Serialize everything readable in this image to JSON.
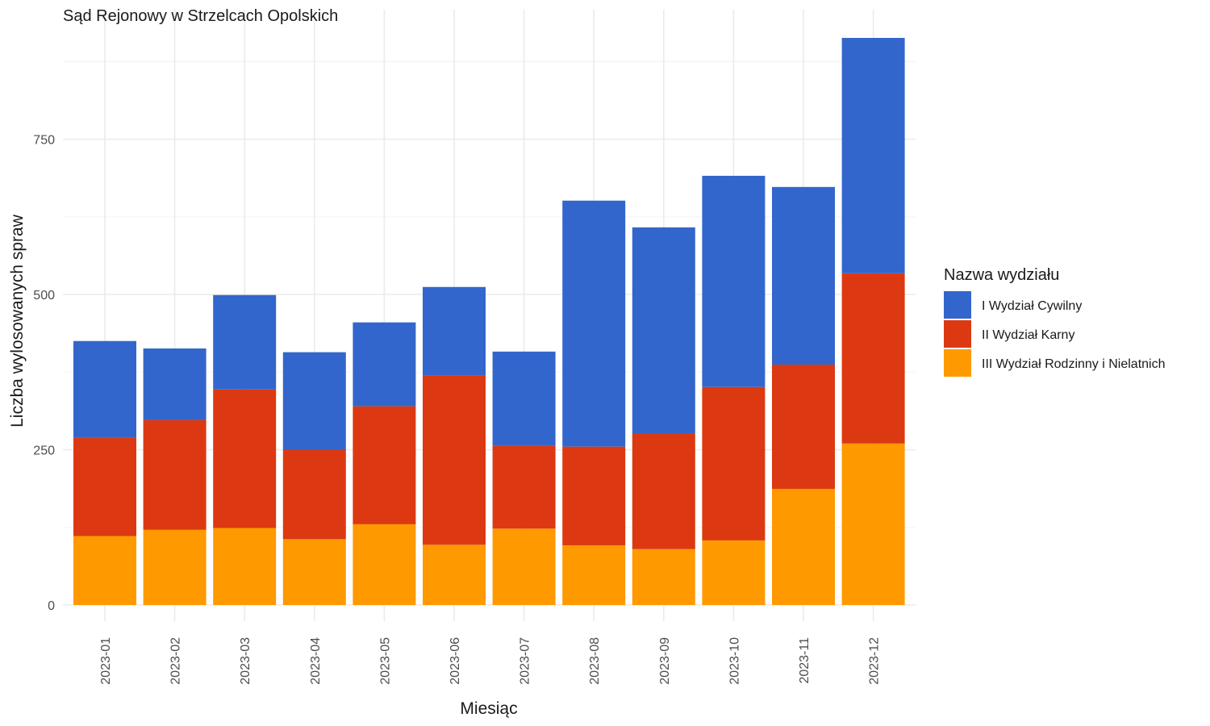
{
  "chart_data": {
    "type": "bar",
    "stacked": true,
    "title": "Sąd Rejonowy w Strzelcach Opolskich",
    "xlabel": "Miesiąc",
    "ylabel": "Liczba wylosowanych spraw",
    "categories": [
      "2023-01",
      "2023-02",
      "2023-03",
      "2023-04",
      "2023-05",
      "2023-06",
      "2023-07",
      "2023-08",
      "2023-09",
      "2023-10",
      "2023-11",
      "2023-12"
    ],
    "ylim": [
      0,
      950
    ],
    "yticks": [
      0,
      250,
      500,
      750
    ],
    "grid": true,
    "legend": {
      "title": "Nazwa wydziału",
      "placement": "right"
    },
    "series": [
      {
        "name": "III Wydział Rodzinny i Nielatnich",
        "color": "#FF9900",
        "values": [
          111,
          121,
          124,
          106,
          130,
          97,
          123,
          96,
          90,
          104,
          187,
          260
        ]
      },
      {
        "name": "II Wydział Karny",
        "color": "#DC3912",
        "values": [
          158,
          177,
          223,
          144,
          190,
          272,
          133,
          159,
          186,
          247,
          200,
          274
        ]
      },
      {
        "name": "I Wydział Cywilny",
        "color": "#3366CC",
        "values": [
          156,
          115,
          152,
          157,
          135,
          143,
          152,
          396,
          332,
          340,
          286,
          379
        ]
      }
    ],
    "legend_order": [
      "I Wydział Cywilny",
      "II Wydział Karny",
      "III Wydział Rodzinny i Nielatnich"
    ]
  }
}
